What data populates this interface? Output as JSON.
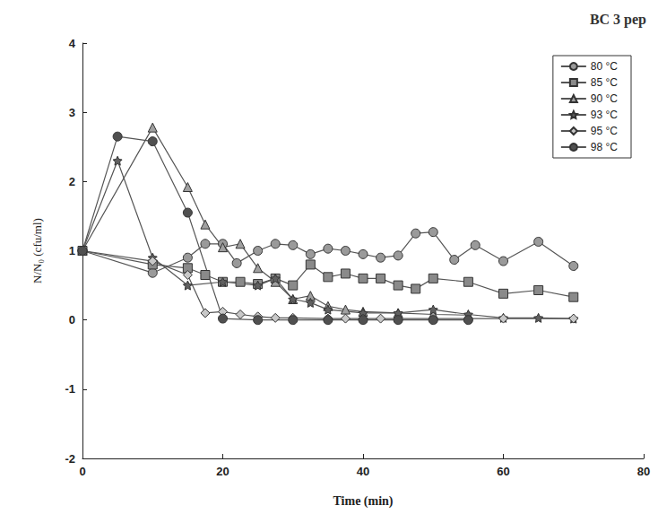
{
  "chart_data": {
    "type": "line",
    "title": "BC 3 pep",
    "x_label": "Time (min)",
    "y_label": "N/N₀ (cfu/ml)",
    "xlim": [
      0,
      80
    ],
    "xticks": [
      0,
      20,
      40,
      60,
      80
    ],
    "ylim": [
      -2,
      4
    ],
    "yticks": [
      -2,
      -1,
      0,
      1,
      2,
      3,
      4
    ],
    "grid": false,
    "legend": "upper right",
    "series": [
      {
        "name": "80 °C",
        "color": "#9a9a9a",
        "marker": "circle",
        "x": [
          0,
          10,
          15,
          17.5,
          20,
          22,
          25,
          27.5,
          30,
          32.5,
          35,
          37.5,
          40,
          42.5,
          45,
          47.5,
          50,
          53,
          56,
          60,
          65,
          70
        ],
        "values": [
          1,
          0.68,
          0.9,
          1.1,
          1.1,
          0.82,
          1.0,
          1.1,
          1.08,
          0.95,
          1.03,
          1.0,
          0.95,
          0.9,
          0.93,
          1.25,
          1.27,
          0.87,
          1.08,
          0.85,
          1.13,
          0.78
        ]
      },
      {
        "name": "85 °C",
        "color": "#8a8a8a",
        "marker": "square",
        "x": [
          0,
          10,
          15,
          17.5,
          20,
          22.5,
          25,
          27.5,
          30,
          32.5,
          35,
          37.5,
          40,
          42.5,
          45,
          47.5,
          50,
          55,
          60,
          65,
          70
        ],
        "values": [
          1,
          0.8,
          0.75,
          0.65,
          0.55,
          0.55,
          0.52,
          0.6,
          0.5,
          0.8,
          0.62,
          0.67,
          0.6,
          0.6,
          0.5,
          0.45,
          0.6,
          0.55,
          0.38,
          0.43,
          0.33
        ]
      },
      {
        "name": "90 °C",
        "color": "#a0a0a0",
        "marker": "triangle",
        "x": [
          0,
          10,
          15,
          17.5,
          20,
          22.5,
          25,
          27.5,
          30,
          32.5,
          35,
          37.5,
          40,
          45,
          50,
          55
        ],
        "values": [
          1,
          2.78,
          1.92,
          1.38,
          1.05,
          1.1,
          0.75,
          0.55,
          0.3,
          0.35,
          0.2,
          0.15,
          0.12,
          0.1,
          0.08,
          0.07
        ]
      },
      {
        "name": "93 °C",
        "color": "#606060",
        "marker": "star",
        "x": [
          0,
          5,
          10,
          15,
          20,
          25,
          27.5,
          30,
          32.5,
          35,
          40,
          45,
          50,
          55,
          60,
          65,
          70
        ],
        "values": [
          1,
          2.3,
          0.9,
          0.5,
          0.55,
          0.5,
          0.6,
          0.3,
          0.25,
          0.15,
          0.1,
          0.1,
          0.15,
          0.08,
          0.03,
          0.03,
          0.02
        ]
      },
      {
        "name": "95 °C",
        "color": "#c8c8c8",
        "marker": "diamond",
        "x": [
          0,
          10,
          15,
          17.5,
          20,
          22.5,
          25,
          27.5,
          30,
          35,
          37.5,
          40,
          42.5,
          60,
          70
        ],
        "values": [
          1,
          0.85,
          0.65,
          0.1,
          0.12,
          0.08,
          0.05,
          0.03,
          0.03,
          0.02,
          0.02,
          0.02,
          0.02,
          0.02,
          0.02
        ]
      },
      {
        "name": "98 °C",
        "color": "#505050",
        "marker": "circle",
        "x": [
          0,
          5,
          10,
          15,
          20,
          25,
          30,
          35,
          40,
          45,
          50,
          55
        ],
        "values": [
          1,
          2.65,
          2.58,
          1.55,
          0.02,
          0.0,
          0.0,
          0.0,
          0.0,
          0.0,
          0.0,
          0.0
        ]
      }
    ]
  }
}
